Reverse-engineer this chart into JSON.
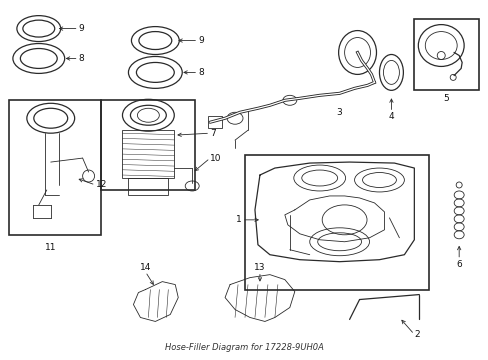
{
  "title": "Hose-Filler Diagram for 17228-9UH0A",
  "background_color": "#ffffff",
  "line_color": "#2a2a2a",
  "label_color": "#111111",
  "fig_width": 4.89,
  "fig_height": 3.6,
  "dpi": 100
}
